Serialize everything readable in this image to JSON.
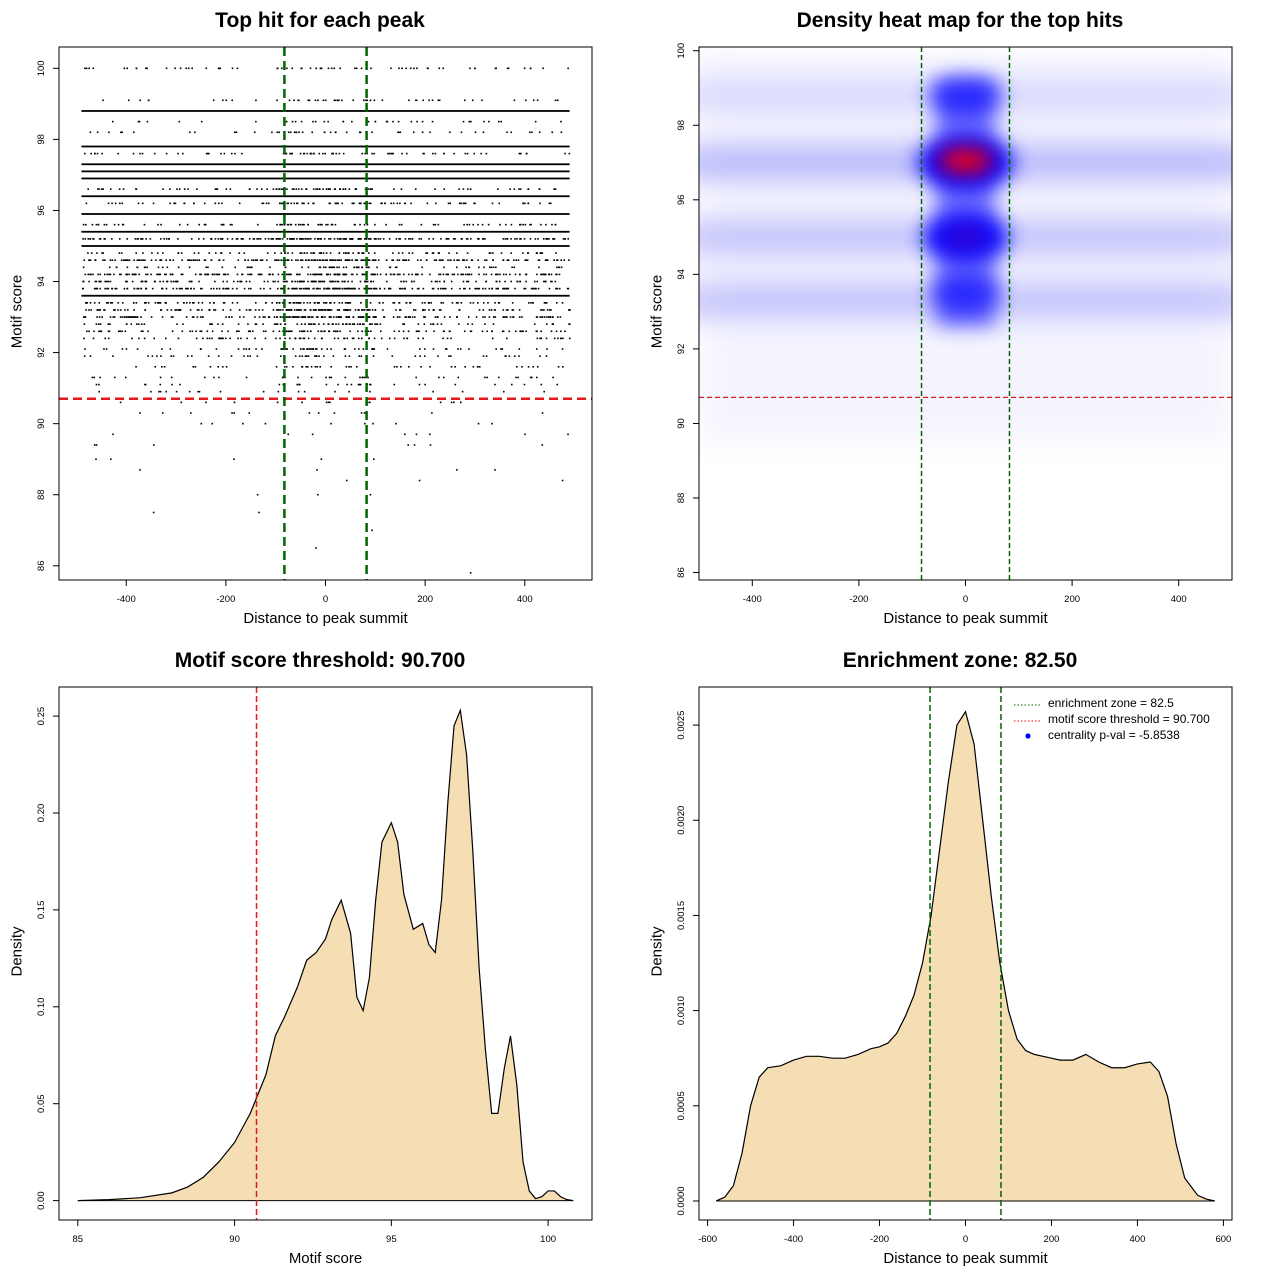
{
  "panels": {
    "scatter": {
      "title": "Top hit for each peak",
      "xlabel": "Distance to peak summit",
      "ylabel": "Motif score"
    },
    "heatmap": {
      "title": "Density heat map for the top hits",
      "xlabel": "Distance to peak summit",
      "ylabel": "Motif score"
    },
    "score_density": {
      "title": "Motif score threshold: 90.700",
      "xlabel": "Motif score",
      "ylabel": "Density"
    },
    "distance_density": {
      "title": "Enrichment zone: 82.50",
      "xlabel": "Distance to peak summit",
      "ylabel": "Density",
      "legend": [
        {
          "label": "enrichment zone = 82.5",
          "color": "#006400",
          "style": "dotted"
        },
        {
          "label": "motif score threshold = 90.700",
          "color": "#ff0000",
          "style": "dotted"
        },
        {
          "label": "centrality p-val = -5.8538",
          "color": "#0000ff",
          "style": "point"
        }
      ]
    }
  },
  "chart_data": [
    {
      "type": "scatter",
      "title": "Top hit for each peak",
      "xlabel": "Distance to peak summit",
      "ylabel": "Motif score",
      "xlim": [
        -535,
        535
      ],
      "ylim": [
        85.6,
        100.6
      ],
      "x_ticks": [
        -400,
        -200,
        0,
        200,
        400
      ],
      "y_ticks": [
        86,
        88,
        90,
        92,
        94,
        96,
        98,
        100
      ],
      "x_range_of_points": [
        -490,
        490
      ],
      "score_levels": [
        100,
        99.1,
        98.8,
        98.5,
        98.2,
        97.8,
        97.6,
        97.3,
        97.1,
        96.9,
        96.6,
        96.4,
        96.2,
        95.9,
        95.6,
        95.4,
        95.2,
        95.0,
        94.8,
        94.6,
        94.4,
        94.2,
        94.0,
        93.8,
        93.6,
        93.4,
        93.2,
        93.0,
        92.8,
        92.6,
        92.4,
        92.1,
        91.9,
        91.6,
        91.3,
        91.1,
        90.9,
        90.6,
        90.3,
        90.0,
        89.7,
        89.4,
        89.0,
        88.7,
        88.4,
        88.0,
        87.5,
        87.0,
        86.5,
        85.8
      ],
      "score_level_density": [
        0.25,
        0.2,
        1.0,
        0.15,
        0.2,
        1.0,
        0.3,
        1.0,
        0.95,
        1.0,
        0.35,
        1.0,
        0.35,
        0.9,
        0.35,
        0.9,
        0.7,
        0.95,
        0.35,
        0.85,
        0.3,
        0.8,
        0.55,
        0.8,
        0.95,
        0.5,
        0.6,
        0.7,
        0.35,
        0.45,
        0.3,
        0.25,
        0.2,
        0.18,
        0.15,
        0.12,
        0.08,
        0.06,
        0.05,
        0.04,
        0.03,
        0.025,
        0.02,
        0.015,
        0.012,
        0.01,
        0.006,
        0.004,
        0.003,
        0.002
      ],
      "hlines": [
        {
          "y": 90.7,
          "color": "#e31a1c"
        }
      ],
      "vlines": [
        {
          "x": -82.5,
          "color": "#006400"
        },
        {
          "x": 82.5,
          "color": "#006400"
        }
      ]
    },
    {
      "type": "heatmap",
      "title": "Density heat map for the top hits",
      "xlabel": "Distance to peak summit",
      "ylabel": "Motif score",
      "xlim": [
        -500,
        500
      ],
      "ylim": [
        85.8,
        100.1
      ],
      "x_ticks": [
        -400,
        -200,
        0,
        200,
        400
      ],
      "y_ticks": [
        86,
        88,
        90,
        92,
        94,
        96,
        98,
        100
      ],
      "color_scale": [
        "#ffffff",
        "#0000ff",
        "#ff0000"
      ],
      "bands": [
        {
          "y": 98.8,
          "strength": 0.25
        },
        {
          "y": 97.0,
          "strength": 0.55
        },
        {
          "y": 95.0,
          "strength": 0.45
        },
        {
          "y": 93.3,
          "strength": 0.45
        }
      ],
      "central_hotspots": [
        {
          "x": 0,
          "y": 97.0,
          "strength": 1.0
        },
        {
          "x": 0,
          "y": 95.0,
          "strength": 0.8
        },
        {
          "x": 0,
          "y": 93.5,
          "strength": 0.45
        },
        {
          "x": 0,
          "y": 98.8,
          "strength": 0.5
        }
      ],
      "hlines": [
        {
          "y": 90.7,
          "color": "#e31a1c"
        }
      ],
      "vlines": [
        {
          "x": -82.5,
          "color": "#006400"
        },
        {
          "x": 82.5,
          "color": "#006400"
        }
      ]
    },
    {
      "type": "area",
      "title": "Motif score threshold: 90.700",
      "xlabel": "Motif score",
      "ylabel": "Density",
      "xlim": [
        84.4,
        101.4
      ],
      "ylim": [
        -0.01,
        0.265
      ],
      "x_ticks": [
        85,
        90,
        95,
        100
      ],
      "y_ticks": [
        0.0,
        0.05,
        0.1,
        0.15,
        0.2,
        0.25
      ],
      "y_tick_labels": [
        "0.00",
        "0.05",
        "0.10",
        "0.15",
        "0.20",
        "0.25"
      ],
      "x": [
        85.0,
        86.0,
        87.0,
        88.0,
        88.5,
        89.0,
        89.5,
        90.0,
        90.5,
        91.0,
        91.3,
        91.6,
        92.0,
        92.3,
        92.6,
        92.9,
        93.1,
        93.4,
        93.7,
        93.9,
        94.1,
        94.3,
        94.5,
        94.7,
        95.0,
        95.2,
        95.4,
        95.7,
        96.0,
        96.2,
        96.4,
        96.6,
        96.8,
        97.0,
        97.2,
        97.4,
        97.6,
        97.8,
        98.0,
        98.2,
        98.4,
        98.6,
        98.8,
        99.0,
        99.2,
        99.4,
        99.6,
        99.8,
        100.0,
        100.2,
        100.4,
        100.6,
        100.8
      ],
      "y": [
        0.0,
        0.0005,
        0.0015,
        0.004,
        0.007,
        0.012,
        0.02,
        0.03,
        0.045,
        0.065,
        0.085,
        0.095,
        0.11,
        0.124,
        0.128,
        0.135,
        0.145,
        0.155,
        0.138,
        0.105,
        0.098,
        0.115,
        0.155,
        0.185,
        0.195,
        0.185,
        0.158,
        0.14,
        0.143,
        0.132,
        0.128,
        0.155,
        0.205,
        0.245,
        0.253,
        0.23,
        0.18,
        0.12,
        0.078,
        0.045,
        0.045,
        0.068,
        0.085,
        0.06,
        0.02,
        0.005,
        0.001,
        0.002,
        0.005,
        0.005,
        0.002,
        0.0005,
        0.0
      ],
      "fill": "#f5deb3",
      "vlines": [
        {
          "x": 90.7,
          "color": "#e31a1c"
        }
      ]
    },
    {
      "type": "area",
      "title": "Enrichment zone: 82.50",
      "xlabel": "Distance to peak summit",
      "ylabel": "Density",
      "xlim": [
        -620,
        620
      ],
      "ylim": [
        -0.0001,
        0.0027
      ],
      "x_ticks": [
        -600,
        -400,
        -200,
        0,
        200,
        400,
        600
      ],
      "y_ticks": [
        0.0,
        0.0005,
        0.001,
        0.0015,
        0.002,
        0.0025
      ],
      "y_tick_labels": [
        "0.0000",
        "0.0005",
        "0.0010",
        "0.0015",
        "0.0020",
        "0.0025"
      ],
      "x": [
        -580,
        -560,
        -540,
        -520,
        -500,
        -480,
        -460,
        -430,
        -400,
        -370,
        -340,
        -310,
        -280,
        -250,
        -220,
        -200,
        -180,
        -160,
        -140,
        -120,
        -100,
        -80,
        -60,
        -40,
        -20,
        0,
        20,
        40,
        60,
        80,
        100,
        120,
        140,
        160,
        180,
        200,
        220,
        250,
        280,
        310,
        340,
        370,
        400,
        430,
        450,
        470,
        490,
        510,
        540,
        560,
        580
      ],
      "y": [
        0.0,
        2e-05,
        8e-05,
        0.00025,
        0.0005,
        0.00065,
        0.0007,
        0.00071,
        0.00074,
        0.00076,
        0.00076,
        0.00075,
        0.00075,
        0.00077,
        0.0008,
        0.00081,
        0.00083,
        0.00088,
        0.00097,
        0.00108,
        0.00125,
        0.0015,
        0.00185,
        0.0022,
        0.0025,
        0.00257,
        0.0024,
        0.002,
        0.0016,
        0.00125,
        0.001,
        0.00085,
        0.00079,
        0.00077,
        0.00076,
        0.00075,
        0.00074,
        0.00074,
        0.00077,
        0.00073,
        0.0007,
        0.0007,
        0.00072,
        0.00073,
        0.00068,
        0.00055,
        0.0003,
        0.00012,
        3e-05,
        1e-05,
        0.0
      ],
      "fill": "#f5deb3",
      "vlines": [
        {
          "x": -82.5,
          "color": "#006400"
        },
        {
          "x": 82.5,
          "color": "#006400"
        }
      ]
    }
  ]
}
